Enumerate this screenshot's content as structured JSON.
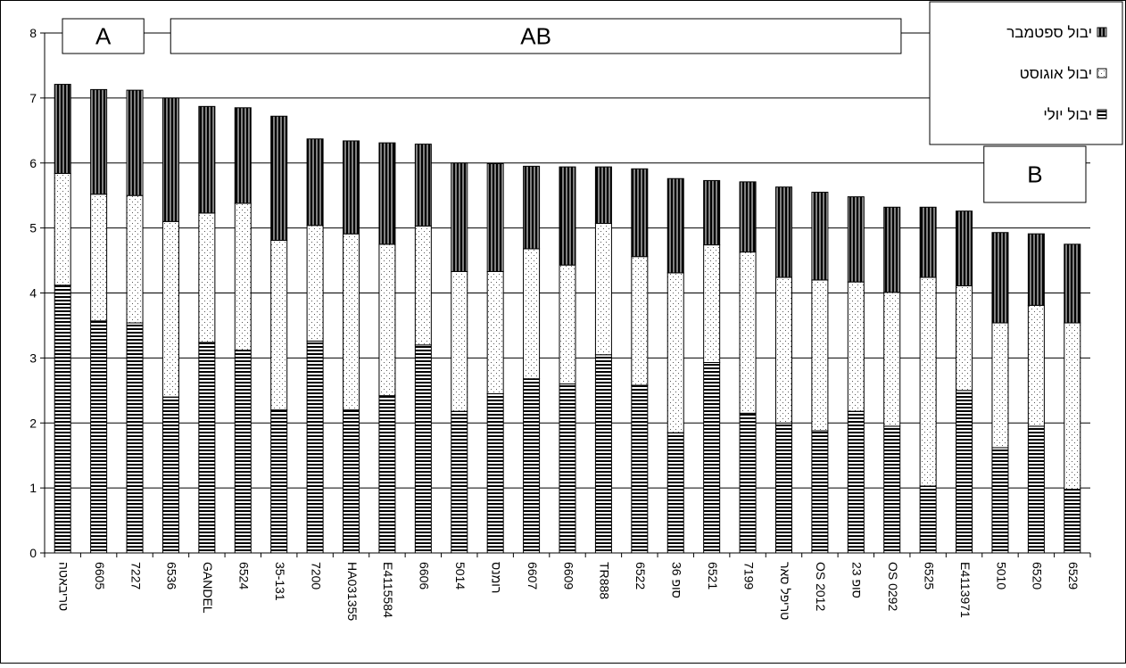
{
  "chart_data": {
    "type": "bar",
    "stacked": true,
    "grid": true,
    "legend_position": "top-right",
    "ylim": [
      0,
      8
    ],
    "yticks": [
      "0",
      "1",
      "2",
      "3",
      "4",
      "5",
      "6",
      "7",
      "8"
    ],
    "categories": [
      "טריבאטה",
      "6605",
      "7227",
      "6536",
      "GANDEL",
      "6524",
      "35-131",
      "7200",
      "HA031355",
      "E4115584",
      "6606",
      "5014",
      "רומנס",
      "6607",
      "6609",
      "TR888",
      "6522",
      "סופ 36",
      "6521",
      "7199",
      "טריפל סאר",
      "OS 2012",
      "סופ 23",
      "OS 0292",
      "6525",
      "E4113971",
      "5010",
      "6520",
      "6529"
    ],
    "series": [
      {
        "name": "יבול יולי",
        "pattern": "horizontal-stripes",
        "values": [
          4.12,
          3.57,
          3.54,
          2.4,
          3.24,
          3.12,
          2.2,
          3.26,
          2.2,
          2.42,
          3.2,
          2.18,
          2.45,
          2.68,
          2.6,
          3.05,
          2.58,
          1.85,
          2.93,
          2.15,
          2.0,
          1.88,
          2.18,
          1.95,
          1.03,
          2.5,
          1.62,
          1.95,
          0.98
        ]
      },
      {
        "name": "יבול אוגוסט",
        "pattern": "dotted",
        "values": [
          1.72,
          1.95,
          1.96,
          2.7,
          1.99,
          2.26,
          2.61,
          1.78,
          2.71,
          2.33,
          1.83,
          2.15,
          1.88,
          2.0,
          1.83,
          2.02,
          1.98,
          2.46,
          1.81,
          2.48,
          2.24,
          2.32,
          1.99,
          2.06,
          3.21,
          1.61,
          1.92,
          1.86,
          2.56
        ]
      },
      {
        "name": "יבול ספטמבר",
        "pattern": "vertical-stripes",
        "values": [
          1.37,
          1.61,
          1.62,
          1.9,
          1.64,
          1.47,
          1.91,
          1.33,
          1.43,
          1.56,
          1.26,
          1.67,
          1.66,
          1.27,
          1.51,
          0.87,
          1.35,
          1.45,
          0.99,
          1.08,
          1.39,
          1.35,
          1.31,
          1.31,
          1.08,
          1.15,
          1.39,
          1.1,
          1.21
        ]
      }
    ],
    "annotations": [
      {
        "text": "A",
        "from_category": 0,
        "to_category": 2
      },
      {
        "text": "AB",
        "from_category": 3,
        "to_category": 23
      },
      {
        "text": "B",
        "from_category": 26,
        "to_category": 28
      }
    ]
  }
}
